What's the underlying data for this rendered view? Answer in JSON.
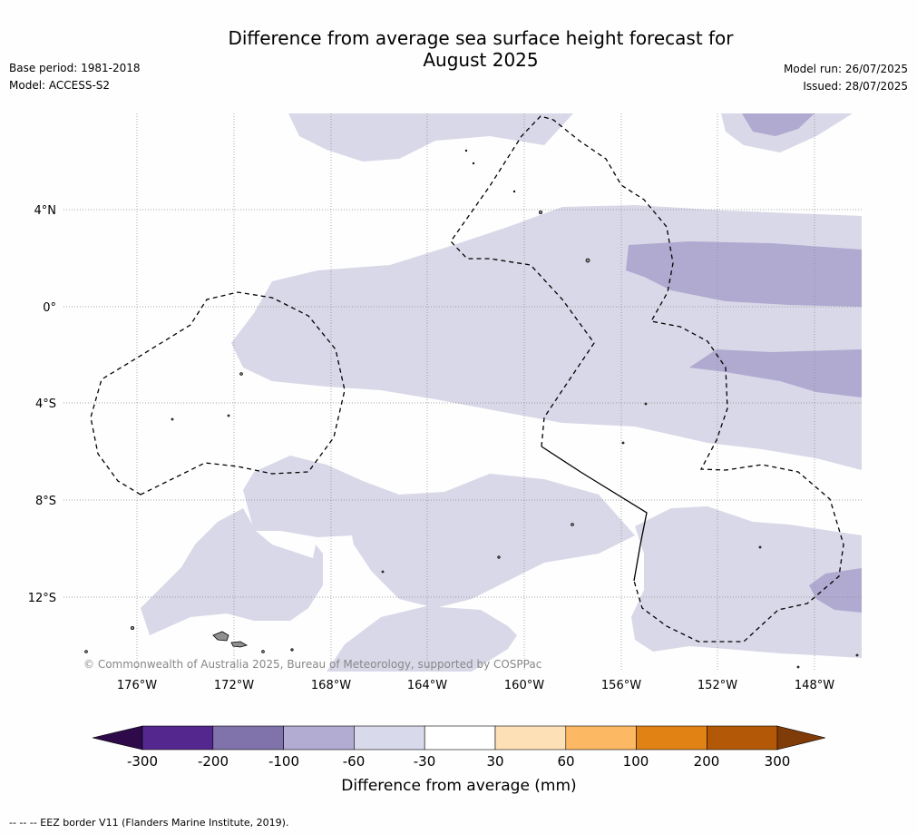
{
  "header": {
    "title_line1": "Difference from average sea surface height forecast for",
    "title_line2": "August 2025",
    "base_period": "Base period: 1981-2018",
    "model": "Model: ACCESS-S2",
    "model_run": "Model run: 26/07/2025",
    "issued": "Issued: 28/07/2025"
  },
  "map": {
    "copyright": "© Commonwealth of Australia 2025, Bureau of Meteorology, supported by COSPPac",
    "lat_labels": [
      "4°N",
      "0°",
      "4°S",
      "8°S",
      "12°S"
    ],
    "lon_labels": [
      "176°W",
      "172°W",
      "168°W",
      "164°W",
      "160°W",
      "156°W",
      "152°W",
      "148°W"
    ],
    "grid": true,
    "colors": {
      "band_-60_-30": "#d8d8e8",
      "band_-100_-60": "#b0a9d0",
      "land": "#909090",
      "eez": "#000000"
    }
  },
  "colorbar": {
    "label": "Difference from average (mm)",
    "ticks": [
      "-300",
      "-200",
      "-100",
      "-60",
      "-30",
      "30",
      "60",
      "100",
      "200",
      "300"
    ],
    "colors": [
      "#2e0a4a",
      "#54278f",
      "#8073ac",
      "#b2abd2",
      "#d8daeb",
      "#ffffff",
      "#fee0b6",
      "#fdb863",
      "#e08214",
      "#b35806",
      "#7f3b08"
    ]
  },
  "footer": {
    "legend_text": "--  --  -- EEZ border V11 (Flanders Marine Institute, 2019)."
  }
}
